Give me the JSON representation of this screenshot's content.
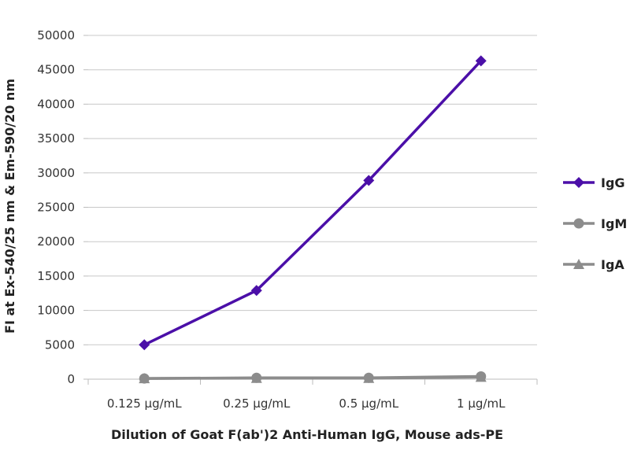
{
  "chart_data": {
    "type": "line",
    "title": "",
    "xlabel": "Dilution of Goat F(ab')2 Anti-Human IgG, Mouse ads-PE",
    "ylabel": "FI at Ex-540/25 nm & Em-590/20 nm",
    "categories": [
      "0.125 µg/mL",
      "0.25 µg/mL",
      "0.5 µg/mL",
      "1 µg/mL"
    ],
    "ylim": [
      0,
      50000
    ],
    "yticks": [
      "0",
      "5000",
      "10000",
      "15000",
      "20000",
      "25000",
      "30000",
      "35000",
      "40000",
      "45000",
      "50000"
    ],
    "grid": true,
    "legend": "right",
    "series": [
      {
        "name": "IgG",
        "values": [
          5000,
          12900,
          28900,
          46300
        ],
        "color": "#4b0fa8",
        "marker": "diamond"
      },
      {
        "name": "IgM",
        "values": [
          100,
          200,
          200,
          400
        ],
        "color": "#8c8c8c",
        "marker": "circle"
      },
      {
        "name": "IgA",
        "values": [
          100,
          150,
          150,
          300
        ],
        "color": "#8c8c8c",
        "marker": "triangle"
      }
    ]
  }
}
